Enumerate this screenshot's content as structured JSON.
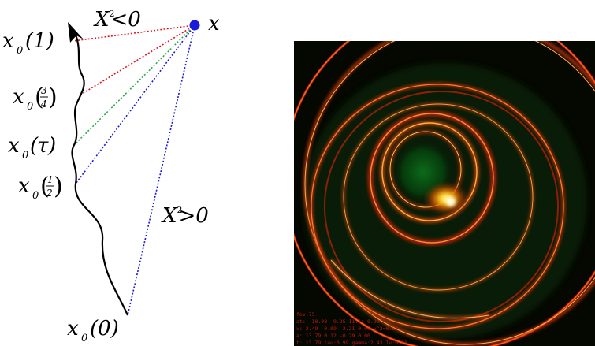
{
  "left_diagram": {
    "point_label": "x",
    "top_relation": "X<0",
    "bottom_relation": "X>0",
    "square_superscript": "2",
    "curve_labels": [
      {
        "base": "x",
        "sub": "0",
        "arg": "(1)"
      },
      {
        "base": "x",
        "sub": "0",
        "num": "3",
        "den": "4"
      },
      {
        "base": "x",
        "sub": "0",
        "arg": "(τ)"
      },
      {
        "base": "x",
        "sub": "0",
        "num": "1",
        "den": "2"
      },
      {
        "base": "x",
        "sub": "0",
        "arg": "(0)"
      }
    ],
    "colors": {
      "point": "#1a1adb",
      "line_1": "#e0141e",
      "line_3_4": "#e0141e",
      "line_tau": "#2aa84a",
      "line_1_2": "#1a1adb",
      "line_0": "#1a1adb",
      "curve": "#000000"
    }
  },
  "right_render": {
    "background": "#050800",
    "hud_lines": [
      "fov:75",
      "at: -10.08 -9.25 11.14 0.99",
      "v: 2.49 -0.09 -2.21 0.96 v^2=0.62",
      "a: 13.79 0.12 -0.29 0.00",
      "t: 13.79 tau:0.99 gamma:2.43 lv:0.91"
    ]
  }
}
